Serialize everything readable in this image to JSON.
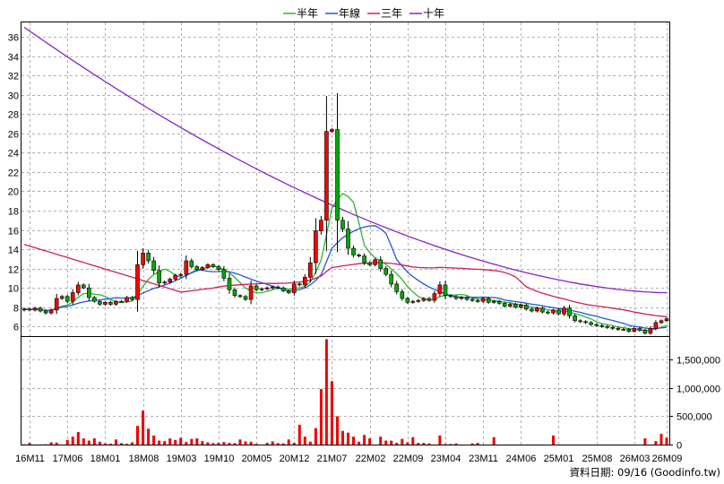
{
  "legend": [
    {
      "key": "half_year",
      "label": "半年",
      "color": "#2db92d"
    },
    {
      "key": "one_year",
      "label": "年線",
      "color": "#2255dd"
    },
    {
      "key": "three_year",
      "label": "三年",
      "color": "#cc2255"
    },
    {
      "key": "ten_year",
      "label": "十年",
      "color": "#8822cc"
    }
  ],
  "credit": "資料日期: 09/16 (Goodinfo.tw)",
  "colors": {
    "up": "#ff0000",
    "down": "#00aa00",
    "volume": "#ee0000",
    "grid": "#b0b0b0",
    "frame": "#000000"
  },
  "chart_data": {
    "type": "candlestick",
    "price_axis": {
      "ylim": [
        5,
        37.5
      ],
      "ticks": [
        6,
        8,
        10,
        12,
        14,
        16,
        18,
        20,
        22,
        24,
        26,
        28,
        30,
        32,
        34,
        36
      ],
      "position": "left"
    },
    "volume_axis": {
      "ylim": [
        0,
        1900000
      ],
      "ticks": [
        0,
        500000,
        1000000,
        1500000
      ],
      "tick_labels": [
        "0",
        "500,000",
        "1,000,000",
        "1,500,000"
      ],
      "position": "right"
    },
    "x_ticks": [
      {
        "i": 1,
        "label": "16M11"
      },
      {
        "i": 8,
        "label": "17M06"
      },
      {
        "i": 15,
        "label": "18M01"
      },
      {
        "i": 22,
        "label": "18M08"
      },
      {
        "i": 29,
        "label": "19M03"
      },
      {
        "i": 36,
        "label": "19M10"
      },
      {
        "i": 43,
        "label": "20M05"
      },
      {
        "i": 50,
        "label": "20M12"
      },
      {
        "i": 57,
        "label": "21M07"
      },
      {
        "i": 64,
        "label": "22M02"
      },
      {
        "i": 71,
        "label": "22M09"
      },
      {
        "i": 78,
        "label": "23M04"
      },
      {
        "i": 85,
        "label": "23M11"
      },
      {
        "i": 92,
        "label": "24M06"
      },
      {
        "i": 99,
        "label": "25M01"
      },
      {
        "i": 106,
        "label": "25M08"
      },
      {
        "i": 113,
        "label": "26M03"
      },
      {
        "i": 119,
        "label": "26M09"
      }
    ],
    "close": [
      7.8,
      7.7,
      7.9,
      7.6,
      7.4,
      7.7,
      8.9,
      9.1,
      8.6,
      9.5,
      10.3,
      10.0,
      9.0,
      8.6,
      8.3,
      8.5,
      8.3,
      8.6,
      8.6,
      9.0,
      8.8,
      12.4,
      13.6,
      12.8,
      11.8,
      10.5,
      10.6,
      10.9,
      11.3,
      11.4,
      12.8,
      12.2,
      11.9,
      12.1,
      12.4,
      12.2,
      11.9,
      11.0,
      9.8,
      9.2,
      9.1,
      8.8,
      10.2,
      9.8,
      9.9,
      10.0,
      10.1,
      10.0,
      9.7,
      9.5,
      10.4,
      10.3,
      11.1,
      12.6,
      15.9,
      17.0,
      26.2,
      26.4,
      17.0,
      16.1,
      14.1,
      13.4,
      13.3,
      12.6,
      12.4,
      12.9,
      12.0,
      11.4,
      10.4,
      9.6,
      8.9,
      8.5,
      8.6,
      8.7,
      8.9,
      8.7,
      9.4,
      10.3,
      9.2,
      9.1,
      8.9,
      9.0,
      8.8,
      8.7,
      8.6,
      8.9,
      8.5,
      8.6,
      8.4,
      8.1,
      8.3,
      8.0,
      8.2,
      7.8,
      7.6,
      7.9,
      7.5,
      7.4,
      7.7,
      7.3,
      7.9,
      7.1,
      6.6,
      6.5,
      6.4,
      6.2,
      6.1,
      6.0,
      5.9,
      5.8,
      5.7,
      5.7,
      5.5,
      5.8,
      5.6,
      5.3,
      5.8,
      6.4,
      6.6,
      6.8
    ],
    "volume": [
      5000,
      30000,
      0,
      0,
      5000,
      40000,
      35000,
      0,
      80000,
      140000,
      220000,
      110000,
      70000,
      110000,
      50000,
      20000,
      15000,
      90000,
      25000,
      15000,
      40000,
      330000,
      600000,
      280000,
      160000,
      70000,
      60000,
      110000,
      80000,
      120000,
      45000,
      100000,
      110000,
      60000,
      40000,
      25000,
      30000,
      45000,
      30000,
      25000,
      90000,
      55000,
      50000,
      15000,
      0,
      30000,
      55000,
      25000,
      20000,
      90000,
      30000,
      350000,
      140000,
      50000,
      290000,
      980000,
      1860000,
      1120000,
      500000,
      240000,
      210000,
      140000,
      50000,
      170000,
      110000,
      0,
      140000,
      70000,
      70000,
      30000,
      100000,
      40000,
      130000,
      30000,
      30000,
      20000,
      0,
      160000,
      10000,
      10000,
      20000,
      0,
      0,
      20000,
      30000,
      0,
      0,
      130000,
      0,
      0,
      0,
      0,
      0,
      0,
      0,
      0,
      0,
      0,
      160000,
      0,
      0,
      0,
      0,
      0,
      0,
      0,
      0,
      0,
      0,
      0,
      0,
      0,
      0,
      0,
      0,
      110000,
      0,
      60000,
      190000,
      120000
    ]
  }
}
